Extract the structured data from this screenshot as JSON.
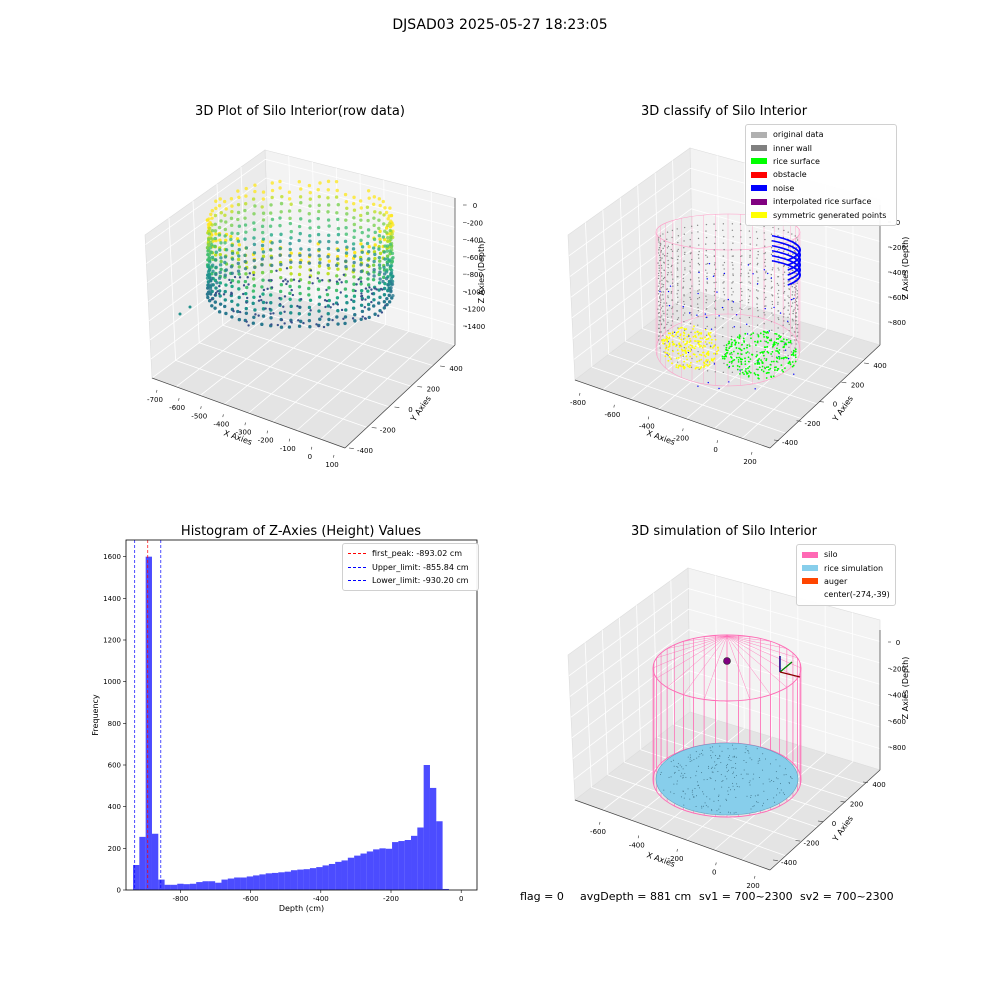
{
  "suptitle": "DJSAD03 2025-05-27 18:23:05",
  "status": {
    "flag": "flag = 0",
    "avg_depth": "avgDepth = 881 cm",
    "sv1": "sv1 = 700~2300",
    "sv2": "sv2 = 700~2300"
  },
  "panels": {
    "raw": {
      "title": "3D Plot of Silo Interior(row data)",
      "xlabel": "X Axies",
      "ylabel": "Y Axies",
      "zlabel": "Z Axies (Depth)",
      "xticks": [
        "-700",
        "-600",
        "-500",
        "-400",
        "-300",
        "-200",
        "-100",
        "0",
        "100"
      ],
      "yticks": [
        "-400",
        "-200",
        "0",
        "200",
        "400"
      ],
      "zticks": [
        "0",
        "-200",
        "-400",
        "-600",
        "-800",
        "-1000",
        "-1200",
        "-1400"
      ]
    },
    "classify": {
      "title": "3D classify of Silo Interior",
      "xlabel": "X Axies",
      "ylabel": "Y Axies",
      "zlabel": "Z Axies (Depth)",
      "xticks": [
        "-800",
        "-600",
        "-400",
        "-200",
        "0",
        "200"
      ],
      "yticks": [
        "-400",
        "-200",
        "0",
        "200",
        "400"
      ],
      "zticks": [
        "0",
        "-200",
        "-400",
        "-600",
        "-800"
      ],
      "legend": [
        {
          "label": "original data",
          "color": "#b0b0b0"
        },
        {
          "label": "inner wall",
          "color": "#808080"
        },
        {
          "label": "rice surface",
          "color": "#00ff00"
        },
        {
          "label": "obstacle",
          "color": "#ff0000"
        },
        {
          "label": "noise",
          "color": "#0000ff"
        },
        {
          "label": "interpolated rice surface",
          "color": "#800080"
        },
        {
          "label": "symmetric generated points",
          "color": "#ffff00"
        }
      ]
    },
    "histogram": {
      "title": "Histogram of Z-Axies (Height) Values",
      "xlabel": "Depth (cm)",
      "ylabel": "Frequency",
      "legend": [
        {
          "label": "first_peak: -893.02 cm",
          "color": "#ff0000"
        },
        {
          "label": "Upper_limit: -855.84 cm",
          "color": "#0000ff"
        },
        {
          "label": "Lower_limit: -930.20 cm",
          "color": "#0000ff"
        }
      ]
    },
    "simulation": {
      "title": "3D simulation of Silo Interior",
      "xlabel": "X Axies",
      "ylabel": "Y Axies",
      "zlabel": "Z Axies (Depth)",
      "xticks": [
        "-600",
        "-400",
        "-200",
        "0",
        "200"
      ],
      "yticks": [
        "-400",
        "-200",
        "0",
        "200",
        "400"
      ],
      "zticks": [
        "0",
        "-200",
        "-400",
        "-600",
        "-800"
      ],
      "legend": [
        {
          "label": "silo",
          "color": "#ff69b4"
        },
        {
          "label": "rice simulation",
          "color": "#87ceeb"
        },
        {
          "label": "auger",
          "color": "#ff4500"
        },
        {
          "label": "center(-274,-39)",
          "color": ""
        }
      ]
    }
  },
  "chart_data": {
    "type": "bar",
    "title": "Histogram of Z-Axies (Height) Values",
    "xlabel": "Depth (cm)",
    "ylabel": "Frequency",
    "xlim": [
      -955,
      45
    ],
    "ylim": [
      0,
      1680
    ],
    "xticks": [
      -800,
      -600,
      -400,
      -200,
      0
    ],
    "yticks": [
      0,
      200,
      400,
      600,
      800,
      1000,
      1200,
      1400,
      1600
    ],
    "color": "#0000ff",
    "bin_edges": [
      -935,
      -917,
      -899,
      -881,
      -863,
      -845,
      -827,
      -809,
      -791,
      -773,
      -755,
      -737,
      -719,
      -701,
      -683,
      -665,
      -647,
      -629,
      -611,
      -593,
      -575,
      -557,
      -539,
      -521,
      -503,
      -485,
      -467,
      -449,
      -431,
      -413,
      -395,
      -377,
      -359,
      -341,
      -323,
      -305,
      -287,
      -269,
      -251,
      -233,
      -215,
      -197,
      -179,
      -161,
      -143,
      -125,
      -107,
      -89,
      -71,
      -53,
      -35,
      -17,
      1
    ],
    "counts": [
      120,
      255,
      1600,
      270,
      50,
      25,
      25,
      30,
      28,
      30,
      38,
      42,
      42,
      35,
      50,
      55,
      60,
      60,
      65,
      70,
      75,
      80,
      82,
      85,
      88,
      95,
      98,
      100,
      105,
      110,
      118,
      125,
      135,
      142,
      155,
      165,
      175,
      185,
      195,
      200,
      198,
      230,
      235,
      240,
      260,
      300,
      600,
      490,
      330,
      5,
      0,
      0
    ],
    "reference_lines": [
      {
        "label": "first_peak: -893.02 cm",
        "x": -893.02,
        "color": "#ff0000",
        "style": "dashed"
      },
      {
        "label": "Upper_limit: -855.84 cm",
        "x": -855.84,
        "color": "#0000ff",
        "style": "dashed"
      },
      {
        "label": "Lower_limit: -930.20 cm",
        "x": -930.2,
        "color": "#0000ff",
        "style": "dashed"
      }
    ]
  }
}
